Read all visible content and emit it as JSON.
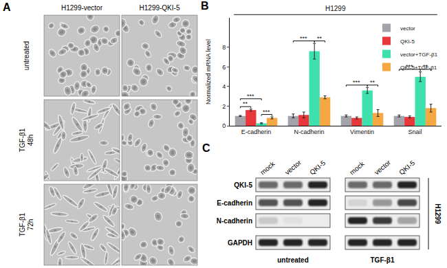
{
  "chart_data": {
    "type": "bar",
    "panel_label": "B",
    "title": "H1299",
    "y_label": "Normalized mRNA level",
    "categories": [
      "E-cadherin",
      "N-cadherin",
      "Vimentin",
      "Snail"
    ],
    "series": [
      {
        "name": "vector",
        "color": "#a3a3ab",
        "values": [
          1.0,
          1.0,
          1.0,
          1.0
        ],
        "errors": [
          0.05,
          0.2,
          0.1,
          0.1
        ]
      },
      {
        "name": "QKI-5",
        "color": "#e8373a",
        "values": [
          1.6,
          1.1,
          0.8,
          0.9
        ],
        "errors": [
          0.1,
          0.3,
          0.1,
          0.1
        ]
      },
      {
        "name": "vector+TGF-β1",
        "color": "#3ee0ae",
        "values": [
          0.25,
          7.6,
          3.6,
          5.0
        ],
        "errors": [
          0.05,
          0.8,
          0.3,
          0.5
        ]
      },
      {
        "name": "QKI-5+TGF-β1",
        "color": "#f5a742",
        "values": [
          0.8,
          2.9,
          1.3,
          1.8
        ],
        "errors": [
          0.1,
          0.15,
          0.35,
          0.4
        ]
      }
    ],
    "ylim": [
      0,
      11
    ],
    "yticks": [
      0,
      2,
      4,
      6,
      8
    ],
    "grid": false,
    "legend": "upper right",
    "significance": [
      {
        "category": "E-cadherin",
        "from": "vector",
        "to": "QKI-5",
        "label": "**"
      },
      {
        "category": "E-cadherin",
        "from": "vector+TGF-β1",
        "to": "QKI-5+TGF-β1",
        "label": "***"
      },
      {
        "category": "E-cadherin",
        "from": "vector",
        "to": "vector+TGF-β1",
        "label": "***"
      },
      {
        "category": "N-cadherin",
        "from": "vector",
        "to": "vector+TGF-β1",
        "label": "***"
      },
      {
        "category": "N-cadherin",
        "from": "vector+TGF-β1",
        "to": "QKI-5+TGF-β1",
        "label": "**"
      },
      {
        "category": "Vimentin",
        "from": "vector",
        "to": "vector+TGF-β1",
        "label": "***"
      },
      {
        "category": "Vimentin",
        "from": "vector+TGF-β1",
        "to": "QKI-5+TGF-β1",
        "label": "**"
      },
      {
        "category": "Snail",
        "from": "vector",
        "to": "vector+TGF-β1",
        "label": "***"
      },
      {
        "category": "Snail",
        "from": "vector+TGF-β1",
        "to": "QKI-5+TGF-β1",
        "label": "**"
      }
    ]
  },
  "panel_A": {
    "label": "A",
    "columns": [
      "H1299-vector",
      "H1299-QKI-5"
    ],
    "rows": [
      [
        "untreated"
      ],
      [
        "TGF-β1",
        "48h"
      ],
      [
        "TGF-β1",
        "72h"
      ]
    ]
  },
  "panel_C": {
    "label": "C",
    "cell_line": "H1299",
    "proteins": [
      "QKI-5",
      "E-cadherin",
      "N-cadherin",
      "GAPDH"
    ],
    "blocks": [
      {
        "condition": "untreated",
        "lanes": [
          "mock",
          "vector",
          "QKI-5"
        ],
        "band_intensity": [
          [
            0.6,
            0.6,
            0.9
          ],
          [
            0.7,
            0.7,
            0.9
          ],
          [
            0.15,
            0.05,
            0.0
          ],
          [
            0.9,
            0.9,
            0.9
          ]
        ]
      },
      {
        "condition": "TGF-β1",
        "lanes": [
          "mock",
          "vector",
          "QKI-5"
        ],
        "band_intensity": [
          [
            0.6,
            0.6,
            0.9
          ],
          [
            0.1,
            0.4,
            0.75
          ],
          [
            0.9,
            0.8,
            0.3
          ],
          [
            0.9,
            0.9,
            0.9
          ]
        ]
      }
    ]
  }
}
